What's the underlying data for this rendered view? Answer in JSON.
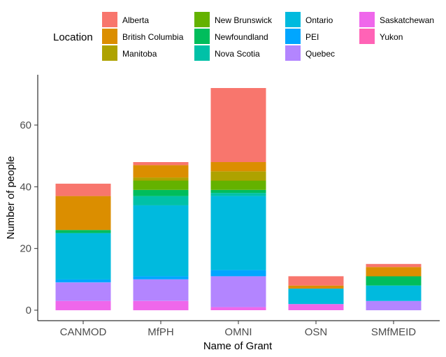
{
  "chart_data": {
    "type": "bar",
    "stacked": true,
    "xlabel": "Name of Grant",
    "ylabel": "Number of people",
    "ylim": [
      0,
      75
    ],
    "yticks": [
      0,
      20,
      40,
      60
    ],
    "grid": false,
    "legend": {
      "title": "Location",
      "position": "top"
    },
    "categories": [
      "CANMOD",
      "MfPH",
      "OMNI",
      "OSN",
      "SMfMEID"
    ],
    "stack_order_bottom_to_top": [
      "Yukon",
      "Saskatchewan",
      "Quebec",
      "PEI",
      "Ontario",
      "Nova Scotia",
      "Newfoundland",
      "New Brunswick",
      "Manitoba",
      "British Columbia",
      "Alberta"
    ],
    "series": [
      {
        "name": "Alberta",
        "color": "#F8766D",
        "values": [
          4,
          1,
          24,
          3,
          1
        ]
      },
      {
        "name": "British Columbia",
        "color": "#DB8E00",
        "values": [
          11,
          4,
          3,
          1,
          3
        ]
      },
      {
        "name": "Manitoba",
        "color": "#AEA200",
        "values": [
          0,
          1,
          3,
          0,
          0
        ]
      },
      {
        "name": "New Brunswick",
        "color": "#64B200",
        "values": [
          0,
          3,
          3,
          0,
          0
        ]
      },
      {
        "name": "Newfoundland",
        "color": "#00BD5C",
        "values": [
          1,
          2,
          1,
          0,
          3
        ]
      },
      {
        "name": "Nova Scotia",
        "color": "#00C1A7",
        "values": [
          0,
          3,
          1,
          0,
          0
        ]
      },
      {
        "name": "Ontario",
        "color": "#00BADE",
        "values": [
          15,
          23,
          24,
          5,
          5
        ]
      },
      {
        "name": "PEI",
        "color": "#00A6FF",
        "values": [
          1,
          1,
          2,
          0,
          0
        ]
      },
      {
        "name": "Quebec",
        "color": "#B385FF",
        "values": [
          6,
          7,
          10,
          0,
          3
        ]
      },
      {
        "name": "Saskatchewan",
        "color": "#EF67EB",
        "values": [
          3,
          3,
          1,
          2,
          0
        ]
      },
      {
        "name": "Yukon",
        "color": "#FF63B6",
        "values": [
          0,
          0,
          0,
          0,
          0
        ]
      }
    ]
  }
}
